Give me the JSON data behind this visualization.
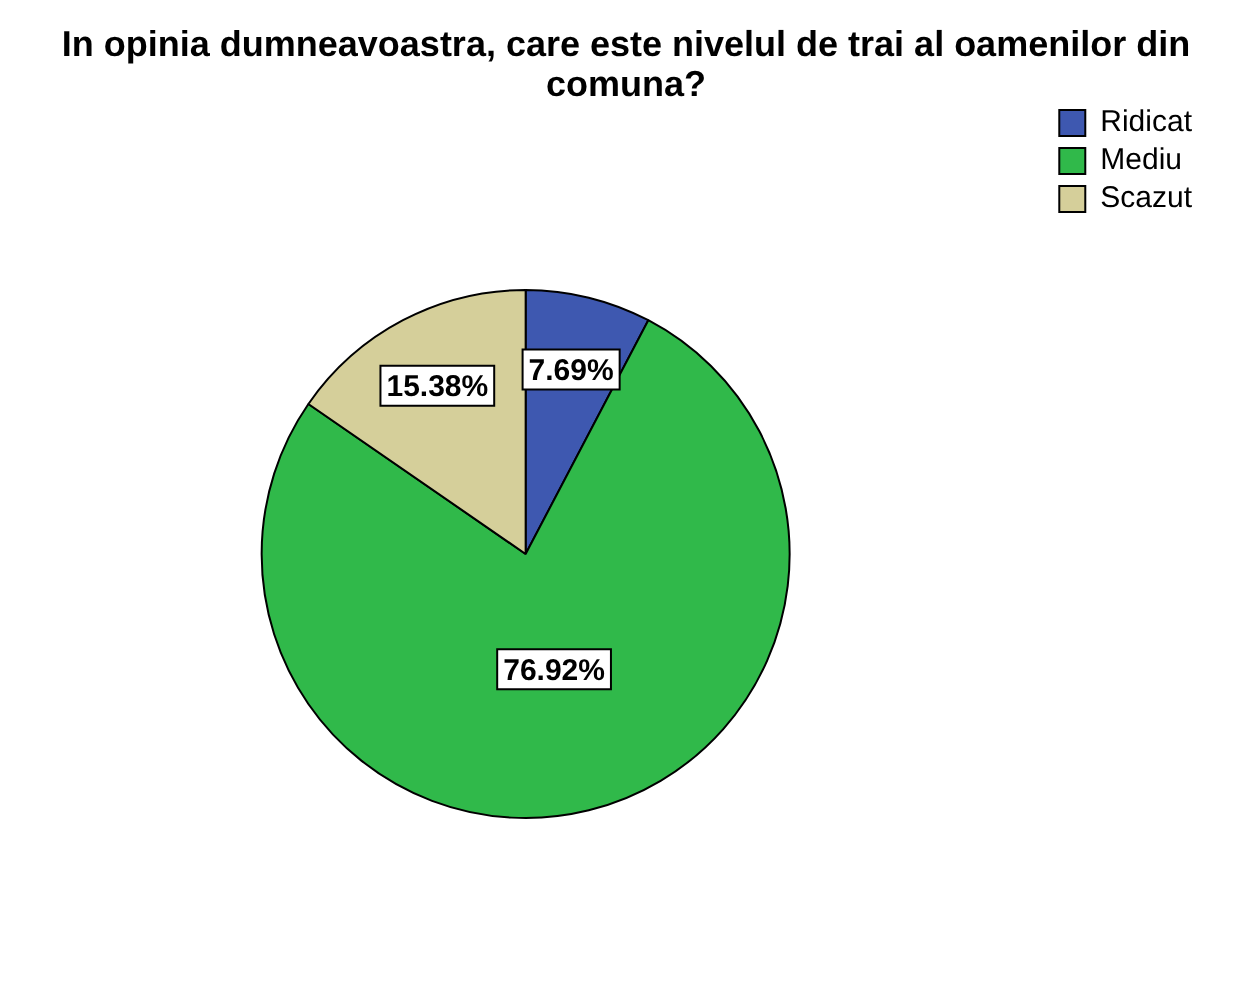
{
  "chart_data": {
    "type": "pie",
    "title": "In opinia dumneavoastra, care este nivelul de trai al oamenilor din comuna?",
    "categories": [
      "Ridicat",
      "Mediu",
      "Scazut"
    ],
    "values": [
      7.69,
      76.92,
      15.38
    ],
    "value_labels": [
      "7.69%",
      "76.92%",
      "15.38%"
    ],
    "colors": [
      "#3e58b0",
      "#30b94a",
      "#d5cf9a"
    ],
    "legend": "top right"
  }
}
